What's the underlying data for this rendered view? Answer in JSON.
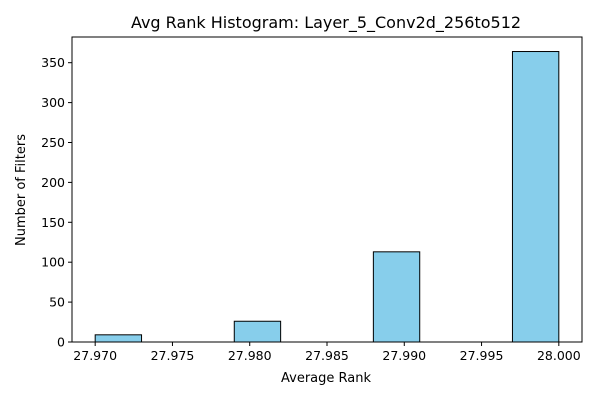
{
  "chart_data": {
    "type": "bar",
    "title": "Avg Rank Histogram: Layer_5_Conv2d_256to512",
    "xlabel": "Average Rank",
    "ylabel": "Number of Filters",
    "bins": [
      {
        "x0": 27.97,
        "x1": 27.973,
        "count": 9
      },
      {
        "x0": 27.973,
        "x1": 27.976,
        "count": 0
      },
      {
        "x0": 27.976,
        "x1": 27.979,
        "count": 0
      },
      {
        "x0": 27.979,
        "x1": 27.982,
        "count": 26
      },
      {
        "x0": 27.982,
        "x1": 27.985,
        "count": 0
      },
      {
        "x0": 27.985,
        "x1": 27.988,
        "count": 0
      },
      {
        "x0": 27.988,
        "x1": 27.991,
        "count": 113
      },
      {
        "x0": 27.991,
        "x1": 27.994,
        "count": 0
      },
      {
        "x0": 27.994,
        "x1": 27.997,
        "count": 0
      },
      {
        "x0": 27.997,
        "x1": 28.0,
        "count": 364
      }
    ],
    "xlim": [
      27.9685,
      28.0015
    ],
    "ylim": [
      0,
      382.2
    ],
    "xticks": [
      27.97,
      27.975,
      27.98,
      27.985,
      27.99,
      27.995,
      28.0
    ],
    "xtick_labels": [
      "27.970",
      "27.975",
      "27.980",
      "27.985",
      "27.990",
      "27.995",
      "28.000"
    ],
    "yticks": [
      0,
      50,
      100,
      150,
      200,
      250,
      300,
      350
    ],
    "ytick_labels": [
      "0",
      "50",
      "100",
      "150",
      "200",
      "250",
      "300",
      "350"
    ],
    "bar_color": "#87ceeb",
    "edge_color": "#000000",
    "grid": false,
    "legend": "none"
  }
}
